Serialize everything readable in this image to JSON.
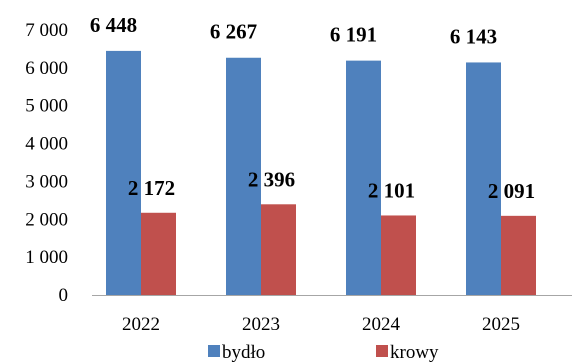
{
  "chart_data": {
    "type": "bar",
    "categories": [
      "2022",
      "2023",
      "2024",
      "2025"
    ],
    "series": [
      {
        "name": "bydło",
        "values": [
          6448,
          6267,
          6191,
          6143
        ],
        "labels": [
          "6 448",
          "6 267",
          "6 191",
          "6 143"
        ],
        "color": "#4f81bd"
      },
      {
        "name": "krowy",
        "values": [
          2172,
          2396,
          2101,
          2091
        ],
        "labels": [
          "2 172",
          "2 396",
          "2 101",
          "2 091"
        ],
        "color": "#c0504d"
      }
    ],
    "ylim": [
      0,
      7000
    ],
    "yticks": [
      0,
      1000,
      2000,
      3000,
      4000,
      5000,
      6000,
      7000
    ],
    "ytick_labels": [
      "0",
      "1 000",
      "2 000",
      "3 000",
      "4 000",
      "5 000",
      "6 000",
      "7 000"
    ],
    "grid": false,
    "legend_position": "bottom",
    "title": "",
    "xlabel": "",
    "ylabel": ""
  }
}
